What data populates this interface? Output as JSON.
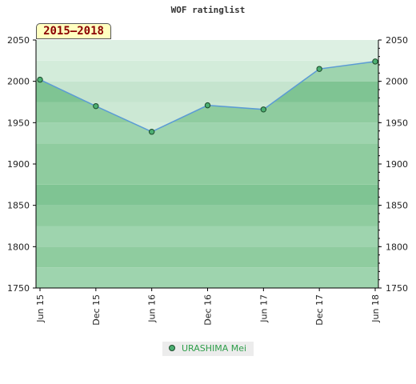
{
  "chart_data": {
    "type": "area",
    "title": "WOF ratinglist",
    "badge": "2015–2018",
    "categories": [
      "Jun 15",
      "Dec 15",
      "Jun 16",
      "Dec 16",
      "Jun 17",
      "Dec 17",
      "Jun 18"
    ],
    "series": [
      {
        "name": "URASHIMA Mei",
        "points": [
          {
            "x": 0,
            "y": 2002
          },
          {
            "x": 1,
            "y": 1970
          },
          {
            "x": 2,
            "y": 1939
          },
          {
            "x": 3,
            "y": 1971
          },
          {
            "x": 4,
            "y": 1966
          },
          {
            "x": 5,
            "y": 2015
          },
          {
            "x": 6,
            "y": 2024
          }
        ]
      }
    ],
    "ylim": [
      1750,
      2050
    ],
    "yticks": [
      1750,
      1800,
      1850,
      1900,
      1950,
      2000,
      2050
    ],
    "legend_position": "bottom-center",
    "colors": {
      "line": "#5b9bd5",
      "marker_fill": "#4caf72",
      "marker_stroke": "#1c4a2a",
      "legend_text": "#2e9e4a",
      "badge_text": "#8b0000",
      "badge_bg": "#ffffc0"
    }
  }
}
